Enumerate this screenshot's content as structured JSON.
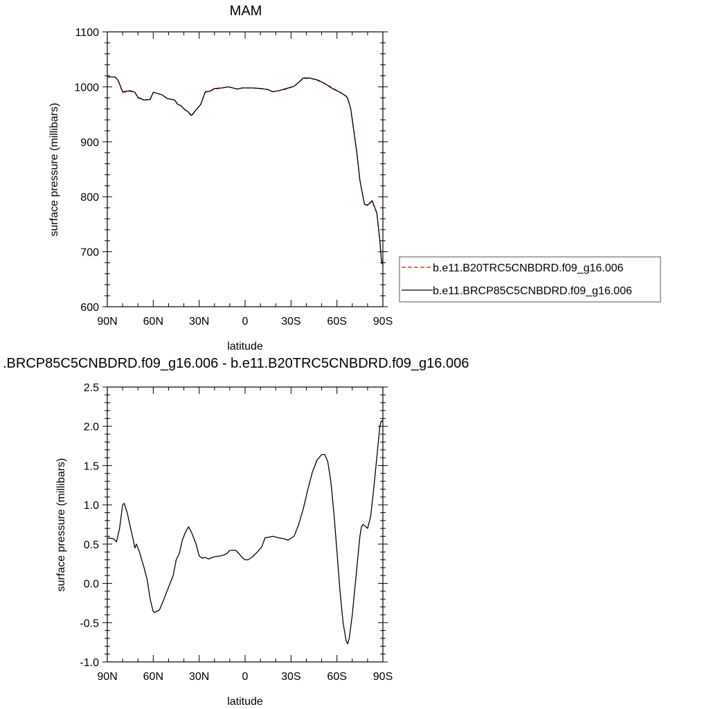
{
  "chart_data": [
    {
      "type": "line",
      "title": "MAM",
      "xlabel": "latitude",
      "ylabel": "surface pressure (millibars)",
      "xlim": [
        90,
        -90
      ],
      "ylim": [
        600,
        1100
      ],
      "x_ticks": [
        90,
        60,
        30,
        0,
        -30,
        -60,
        -90
      ],
      "x_tick_labels": [
        "90N",
        "60N",
        "30N",
        "0",
        "30S",
        "60S",
        "90S"
      ],
      "y_ticks": [
        600,
        700,
        800,
        900,
        1000,
        1100
      ],
      "y_tick_labels": [
        "600",
        "700",
        "800",
        "900",
        "1000",
        "1100"
      ],
      "legend_position": "right",
      "series": [
        {
          "name": "b.e11.B20TRC5CNBDRD.f09_g16.006",
          "color": "#ff0000",
          "dash": "dashed",
          "points": [
            [
              90,
              1018
            ],
            [
              85,
              1018
            ],
            [
              83,
              1012
            ],
            [
              80,
              990
            ],
            [
              75,
              992
            ],
            [
              72,
              990
            ],
            [
              70,
              980
            ],
            [
              66,
              976
            ],
            [
              62,
              978
            ],
            [
              60,
              990
            ],
            [
              56,
              987
            ],
            [
              54,
              985
            ],
            [
              51,
              979
            ],
            [
              46,
              976
            ],
            [
              44,
              968
            ],
            [
              42,
              966
            ],
            [
              40,
              960
            ],
            [
              37,
              953
            ],
            [
              35,
              947
            ],
            [
              32,
              958
            ],
            [
              29,
              968
            ],
            [
              26,
              990
            ],
            [
              23,
              992
            ],
            [
              20,
              996
            ],
            [
              15,
              998
            ],
            [
              11,
              1000
            ],
            [
              8,
              998
            ],
            [
              5,
              996
            ],
            [
              2,
              998
            ],
            [
              -5,
              998
            ],
            [
              -10,
              997
            ],
            [
              -15,
              995
            ],
            [
              -18,
              991
            ],
            [
              -22,
              993
            ],
            [
              -27,
              996
            ],
            [
              -32,
              1001
            ],
            [
              -35,
              1008
            ],
            [
              -38,
              1015
            ],
            [
              -42,
              1016
            ],
            [
              -47,
              1012
            ],
            [
              -52,
              1006
            ],
            [
              -57,
              998
            ],
            [
              -62,
              990
            ],
            [
              -66,
              983
            ],
            [
              -67,
              980
            ],
            [
              -69,
              960
            ],
            [
              -71,
              920
            ],
            [
              -73,
              880
            ],
            [
              -75,
              830
            ],
            [
              -77,
              800
            ],
            [
              -78,
              786
            ],
            [
              -80,
              784
            ],
            [
              -83,
              792
            ],
            [
              -86,
              770
            ],
            [
              -88,
              720
            ],
            [
              -89,
              685
            ],
            [
              -89.5,
              677
            ],
            [
              -90,
              680
            ]
          ]
        },
        {
          "name": "b.e11.BRCP85C5CNBDRD.f09_g16.006",
          "color": "#000000",
          "dash": "solid",
          "points": [
            [
              90,
              1018
            ],
            [
              85,
              1018
            ],
            [
              83,
              1012
            ],
            [
              80,
              991
            ],
            [
              75,
              993
            ],
            [
              72,
              990
            ],
            [
              70,
              981
            ],
            [
              66,
              976
            ],
            [
              62,
              977
            ],
            [
              60,
              990
            ],
            [
              56,
              987
            ],
            [
              54,
              985
            ],
            [
              51,
              979
            ],
            [
              46,
              976
            ],
            [
              44,
              968
            ],
            [
              42,
              966
            ],
            [
              40,
              960
            ],
            [
              37,
              954
            ],
            [
              35,
              948
            ],
            [
              32,
              958
            ],
            [
              29,
              968
            ],
            [
              26,
              991
            ],
            [
              23,
              992
            ],
            [
              20,
              997
            ],
            [
              15,
              998
            ],
            [
              11,
              1000
            ],
            [
              8,
              998
            ],
            [
              5,
              996
            ],
            [
              2,
              998
            ],
            [
              -5,
              998
            ],
            [
              -10,
              997
            ],
            [
              -15,
              995
            ],
            [
              -18,
              991
            ],
            [
              -22,
              993
            ],
            [
              -27,
              997
            ],
            [
              -32,
              1001
            ],
            [
              -35,
              1008
            ],
            [
              -38,
              1016
            ],
            [
              -42,
              1016
            ],
            [
              -47,
              1013
            ],
            [
              -52,
              1006
            ],
            [
              -57,
              997
            ],
            [
              -62,
              990
            ],
            [
              -66,
              983
            ],
            [
              -67,
              979
            ],
            [
              -69,
              960
            ],
            [
              -71,
              920
            ],
            [
              -73,
              880
            ],
            [
              -75,
              830
            ],
            [
              -77,
              800
            ],
            [
              -78,
              786
            ],
            [
              -80,
              785
            ],
            [
              -83,
              793
            ],
            [
              -86,
              771
            ],
            [
              -88,
              721
            ],
            [
              -89,
              686
            ],
            [
              -89.5,
              678
            ],
            [
              -90,
              682
            ]
          ]
        }
      ]
    },
    {
      "type": "line",
      "title": ".BRCP85C5CNBDRD.f09_g16.006 - b.e11.B20TRC5CNBDRD.f09_g16.006",
      "xlabel": "latitude",
      "ylabel": "surface pressure (millibars)",
      "xlim": [
        90,
        -90
      ],
      "ylim": [
        -1.0,
        2.5
      ],
      "x_ticks": [
        90,
        60,
        30,
        0,
        -30,
        -60,
        -90
      ],
      "x_tick_labels": [
        "90N",
        "60N",
        "30N",
        "0",
        "30S",
        "60S",
        "90S"
      ],
      "y_ticks": [
        -1.0,
        -0.5,
        0.0,
        0.5,
        1.0,
        1.5,
        2.0,
        2.5
      ],
      "y_tick_labels": [
        "-1.0",
        "-0.5",
        "0.0",
        "0.5",
        "1.0",
        "1.5",
        "2.0",
        "2.5"
      ],
      "series": [
        {
          "color": "#000000",
          "dash": "solid",
          "points": [
            [
              90,
              0.58
            ],
            [
              86,
              0.57
            ],
            [
              84,
              0.53
            ],
            [
              82,
              0.7
            ],
            [
              80,
              1.0
            ],
            [
              79,
              1.02
            ],
            [
              77,
              0.9
            ],
            [
              75,
              0.72
            ],
            [
              73,
              0.55
            ],
            [
              72,
              0.45
            ],
            [
              71,
              0.5
            ],
            [
              69,
              0.4
            ],
            [
              66,
              0.2
            ],
            [
              64,
              0.05
            ],
            [
              62,
              -0.2
            ],
            [
              60,
              -0.36
            ],
            [
              59,
              -0.37
            ],
            [
              56,
              -0.34
            ],
            [
              53,
              -0.2
            ],
            [
              50,
              -0.05
            ],
            [
              47,
              0.1
            ],
            [
              45,
              0.3
            ],
            [
              43,
              0.38
            ],
            [
              41,
              0.55
            ],
            [
              39,
              0.65
            ],
            [
              37,
              0.72
            ],
            [
              35,
              0.65
            ],
            [
              32,
              0.5
            ],
            [
              30,
              0.35
            ],
            [
              28,
              0.32
            ],
            [
              26,
              0.33
            ],
            [
              24,
              0.31
            ],
            [
              20,
              0.34
            ],
            [
              16,
              0.35
            ],
            [
              14,
              0.36
            ],
            [
              12,
              0.38
            ],
            [
              10,
              0.42
            ],
            [
              6,
              0.42
            ],
            [
              4,
              0.38
            ],
            [
              2,
              0.33
            ],
            [
              0,
              0.3
            ],
            [
              -2,
              0.3
            ],
            [
              -5,
              0.34
            ],
            [
              -8,
              0.4
            ],
            [
              -11,
              0.47
            ],
            [
              -13,
              0.58
            ],
            [
              -16,
              0.59
            ],
            [
              -18,
              0.6
            ],
            [
              -22,
              0.58
            ],
            [
              -25,
              0.57
            ],
            [
              -28,
              0.55
            ],
            [
              -32,
              0.6
            ],
            [
              -35,
              0.75
            ],
            [
              -38,
              0.95
            ],
            [
              -41,
              1.2
            ],
            [
              -44,
              1.42
            ],
            [
              -47,
              1.57
            ],
            [
              -50,
              1.64
            ],
            [
              -52,
              1.64
            ],
            [
              -54,
              1.55
            ],
            [
              -56,
              1.3
            ],
            [
              -58,
              0.9
            ],
            [
              -60,
              0.4
            ],
            [
              -62,
              -0.1
            ],
            [
              -64,
              -0.5
            ],
            [
              -66,
              -0.73
            ],
            [
              -67,
              -0.77
            ],
            [
              -68,
              -0.7
            ],
            [
              -70,
              -0.4
            ],
            [
              -72,
              0.0
            ],
            [
              -74,
              0.4
            ],
            [
              -75,
              0.6
            ],
            [
              -76,
              0.72
            ],
            [
              -77,
              0.75
            ],
            [
              -79,
              0.72
            ],
            [
              -80,
              0.7
            ],
            [
              -82,
              0.85
            ],
            [
              -84,
              1.2
            ],
            [
              -86,
              1.6
            ],
            [
              -88,
              2.0
            ],
            [
              -89,
              2.07
            ],
            [
              -90,
              2.06
            ]
          ]
        }
      ]
    }
  ]
}
